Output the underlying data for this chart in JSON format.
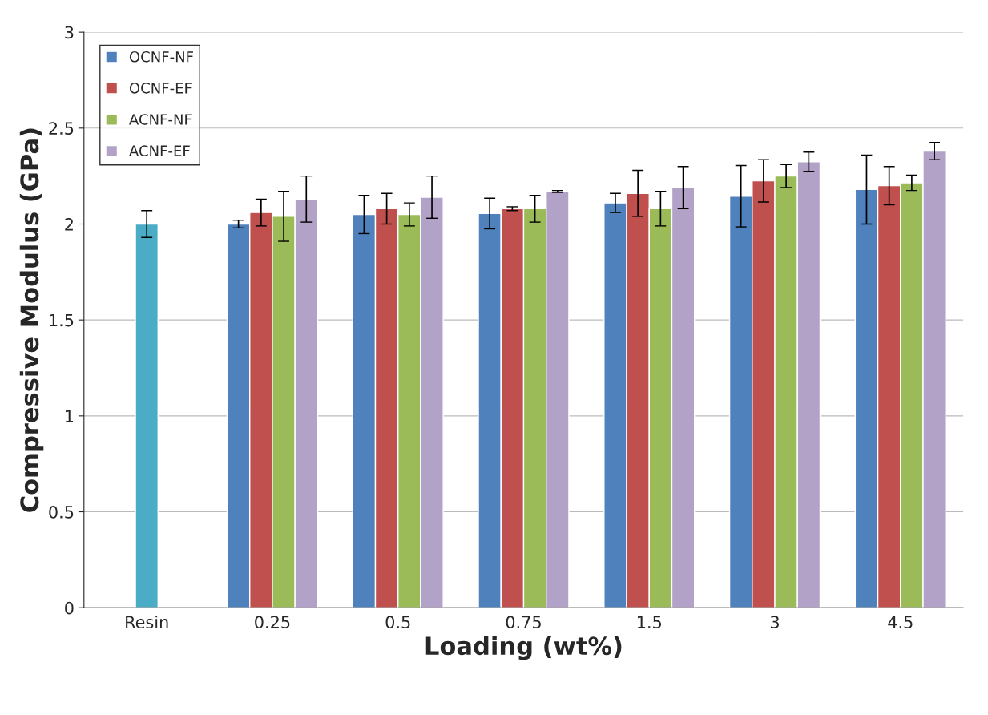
{
  "chart_data": {
    "type": "bar",
    "xlabel": "Loading (wt%)",
    "ylabel": "Compressive Modulus (GPa)",
    "categories": [
      "Resin",
      "0.25",
      "0.5",
      "0.75",
      "1.5",
      "3",
      "4.5"
    ],
    "series": [
      {
        "color": "#4bacc6",
        "values": [
          2.0,
          null,
          null,
          null,
          null,
          null,
          null
        ],
        "errors": [
          0.07,
          null,
          null,
          null,
          null,
          null,
          null
        ]
      },
      {
        "name": "OCNF-NF",
        "color": "#4f81bd",
        "values": [
          null,
          2.0,
          2.05,
          2.055,
          2.11,
          2.145,
          2.18
        ],
        "errors": [
          null,
          0.02,
          0.1,
          0.08,
          0.05,
          0.16,
          0.18
        ]
      },
      {
        "name": "OCNF-EF",
        "color": "#c0504d",
        "values": [
          null,
          2.06,
          2.08,
          2.08,
          2.16,
          2.225,
          2.2
        ],
        "errors": [
          null,
          0.07,
          0.08,
          0.01,
          0.12,
          0.11,
          0.1
        ]
      },
      {
        "name": "ACNF-NF",
        "color": "#9bbb59",
        "values": [
          null,
          2.04,
          2.05,
          2.08,
          2.08,
          2.25,
          2.215
        ],
        "errors": [
          null,
          0.13,
          0.06,
          0.07,
          0.09,
          0.06,
          0.04
        ]
      },
      {
        "name": "ACNF-EF",
        "color": "#b3a2c7",
        "values": [
          null,
          2.13,
          2.14,
          2.17,
          2.19,
          2.325,
          2.38
        ],
        "errors": [
          null,
          0.12,
          0.11,
          0.005,
          0.11,
          0.05,
          0.045
        ]
      }
    ],
    "ylim": [
      0,
      3
    ],
    "yticks": [
      0,
      0.5,
      1,
      1.5,
      2,
      2.5,
      3
    ],
    "grid": "y",
    "legend": "top left"
  }
}
